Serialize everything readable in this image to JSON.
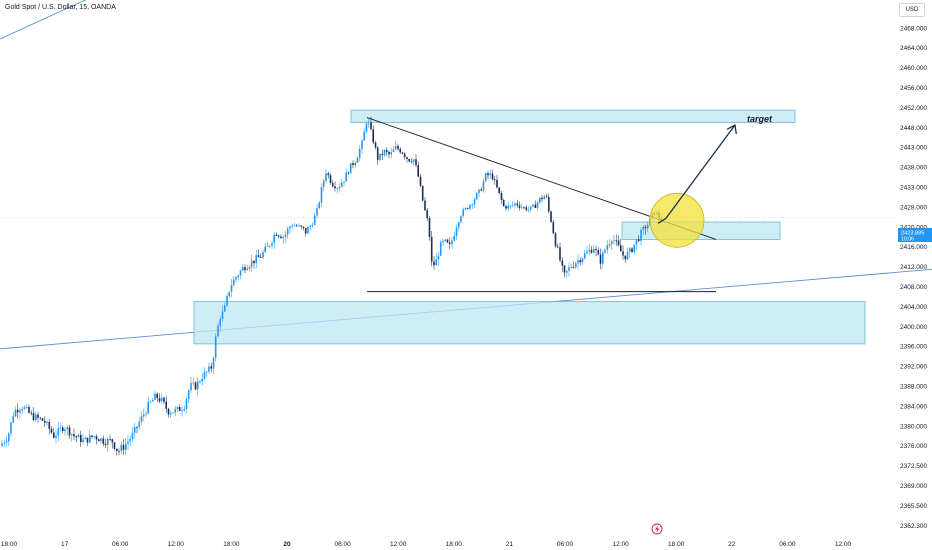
{
  "header": {
    "title": "Gold Spot / U.S. Dollar, 15, OANDA",
    "currency": "USD"
  },
  "price_tag": {
    "price": "2423.885",
    "countdown": "10:06"
  },
  "colors": {
    "up": "#2196f3",
    "down": "#1a2d52",
    "zone_fill": "#bfe7f3",
    "zone_stroke": "#6bb6cf",
    "highlight": "#f3e03a",
    "trendline": "#5b8fd6",
    "arrow": "#1a2d52"
  },
  "chart_data": {
    "type": "candlestick",
    "title": "Gold Spot / U.S. Dollar, 15, OANDA",
    "y_ticks": [
      2468.0,
      2464.0,
      2460.0,
      2456.0,
      2452.0,
      2448.0,
      2443.0,
      2438.0,
      2433.0,
      2428.0,
      2420.0,
      2416.0,
      2412.0,
      2408.0,
      2404.0,
      2400.0,
      2396.0,
      2392.0,
      2388.0,
      2384.0,
      2380.0,
      2376.0,
      2372.5,
      2369.0,
      2365.5,
      2362.3
    ],
    "y_tick_labels": [
      "2468.000",
      "2464.000",
      "2460.000",
      "2456.000",
      "2452.000",
      "2448.000",
      "2443.000",
      "2438.000",
      "2433.000",
      "2428.000",
      "2420.000",
      "2416.000",
      "2412.000",
      "2408.000",
      "2404.000",
      "2400.000",
      "2396.000",
      "2392.000",
      "2388.000",
      "2384.000",
      "2380.000",
      "2376.000",
      "2372.500",
      "2369.000",
      "2365.500",
      "2362.300"
    ],
    "x_ticks": [
      {
        "label": "18:00",
        "bold": false
      },
      {
        "label": "17",
        "bold": false
      },
      {
        "label": "06:00",
        "bold": false
      },
      {
        "label": "12:00",
        "bold": false
      },
      {
        "label": "18:00",
        "bold": false
      },
      {
        "label": "20",
        "bold": true
      },
      {
        "label": "06:00",
        "bold": false
      },
      {
        "label": "12:00",
        "bold": false
      },
      {
        "label": "18:00",
        "bold": false
      },
      {
        "label": "21",
        "bold": false
      },
      {
        "label": "06:00",
        "bold": false
      },
      {
        "label": "12:00",
        "bold": false
      },
      {
        "label": "18:00",
        "bold": false
      },
      {
        "label": "22",
        "bold": false
      },
      {
        "label": "06:00",
        "bold": false
      },
      {
        "label": "12:00",
        "bold": false
      }
    ],
    "price_path": [
      [
        0,
        2376
      ],
      [
        8,
        2378
      ],
      [
        14,
        2383
      ],
      [
        22,
        2384
      ],
      [
        32,
        2382
      ],
      [
        44,
        2381
      ],
      [
        54,
        2378
      ],
      [
        64,
        2380
      ],
      [
        74,
        2378
      ],
      [
        84,
        2377
      ],
      [
        94,
        2378
      ],
      [
        104,
        2377
      ],
      [
        112,
        2377
      ],
      [
        118,
        2375
      ],
      [
        124,
        2376
      ],
      [
        132,
        2378
      ],
      [
        140,
        2381
      ],
      [
        148,
        2384
      ],
      [
        156,
        2386
      ],
      [
        162,
        2385
      ],
      [
        168,
        2383
      ],
      [
        176,
        2383
      ],
      [
        184,
        2384
      ],
      [
        190,
        2388
      ],
      [
        196,
        2388
      ],
      [
        202,
        2390
      ],
      [
        208,
        2391
      ],
      [
        212,
        2392
      ],
      [
        216,
        2398
      ],
      [
        220,
        2402
      ],
      [
        224,
        2403
      ],
      [
        230,
        2408
      ],
      [
        236,
        2410
      ],
      [
        244,
        2412
      ],
      [
        252,
        2413
      ],
      [
        260,
        2414
      ],
      [
        268,
        2416
      ],
      [
        276,
        2419
      ],
      [
        284,
        2418
      ],
      [
        292,
        2421
      ],
      [
        300,
        2420
      ],
      [
        306,
        2419
      ],
      [
        312,
        2421
      ],
      [
        318,
        2428
      ],
      [
        322,
        2433
      ],
      [
        326,
        2437
      ],
      [
        332,
        2434
      ],
      [
        338,
        2433
      ],
      [
        344,
        2435
      ],
      [
        350,
        2438
      ],
      [
        356,
        2440
      ],
      [
        362,
        2444
      ],
      [
        367,
        2450
      ],
      [
        372,
        2446
      ],
      [
        378,
        2440
      ],
      [
        384,
        2442
      ],
      [
        390,
        2441
      ],
      [
        396,
        2443
      ],
      [
        402,
        2442
      ],
      [
        408,
        2440
      ],
      [
        414,
        2440
      ],
      [
        418,
        2436
      ],
      [
        424,
        2428
      ],
      [
        428,
        2422
      ],
      [
        432,
        2412
      ],
      [
        436,
        2413
      ],
      [
        440,
        2416
      ],
      [
        444,
        2417
      ],
      [
        450,
        2416
      ],
      [
        456,
        2420
      ],
      [
        462,
        2426
      ],
      [
        468,
        2428
      ],
      [
        474,
        2430
      ],
      [
        480,
        2432
      ],
      [
        486,
        2436
      ],
      [
        492,
        2436
      ],
      [
        498,
        2432
      ],
      [
        504,
        2428
      ],
      [
        510,
        2428
      ],
      [
        516,
        2429
      ],
      [
        522,
        2428
      ],
      [
        528,
        2427
      ],
      [
        534,
        2428
      ],
      [
        540,
        2430
      ],
      [
        546,
        2431
      ],
      [
        550,
        2424
      ],
      [
        554,
        2418
      ],
      [
        558,
        2415
      ],
      [
        564,
        2410
      ],
      [
        570,
        2412
      ],
      [
        576,
        2413
      ],
      [
        582,
        2414
      ],
      [
        588,
        2415
      ],
      [
        594,
        2416
      ],
      [
        600,
        2413
      ],
      [
        606,
        2416
      ],
      [
        612,
        2418
      ],
      [
        618,
        2416
      ],
      [
        624,
        2414
      ],
      [
        630,
        2415
      ],
      [
        636,
        2417
      ],
      [
        642,
        2419
      ],
      [
        648,
        2421
      ],
      [
        652,
        2425
      ],
      [
        656,
        2426
      ],
      [
        660,
        2423
      ],
      [
        664,
        2424
      ]
    ],
    "zones": [
      {
        "label": "target",
        "price_top": 2451.5,
        "price_bottom": 2449.0
      },
      {
        "label": "",
        "price_top": 2422.0,
        "price_bottom": 2417.5
      },
      {
        "label": "",
        "price_top": 2405.0,
        "price_bottom": 2396.5
      }
    ],
    "annotations": {
      "target_label": "target",
      "descending_trendline": [
        [
          367,
          2450
        ],
        [
          716,
          2417.5
        ]
      ],
      "support_line_price": 2407.0,
      "upper_channel_line": [
        [
          0,
          2465.8
        ],
        [
          422,
          2471.5
        ]
      ],
      "lower_channel_line": [
        [
          0,
          2395.5
        ],
        [
          932,
          2411.5
        ]
      ],
      "current_price_line": 2423.885,
      "highlight_circle_price": 2422.7,
      "projection_arrow": [
        [
          658,
          2421.5
        ],
        [
          666,
          2423.5
        ],
        [
          735,
          2448.5
        ]
      ]
    }
  }
}
